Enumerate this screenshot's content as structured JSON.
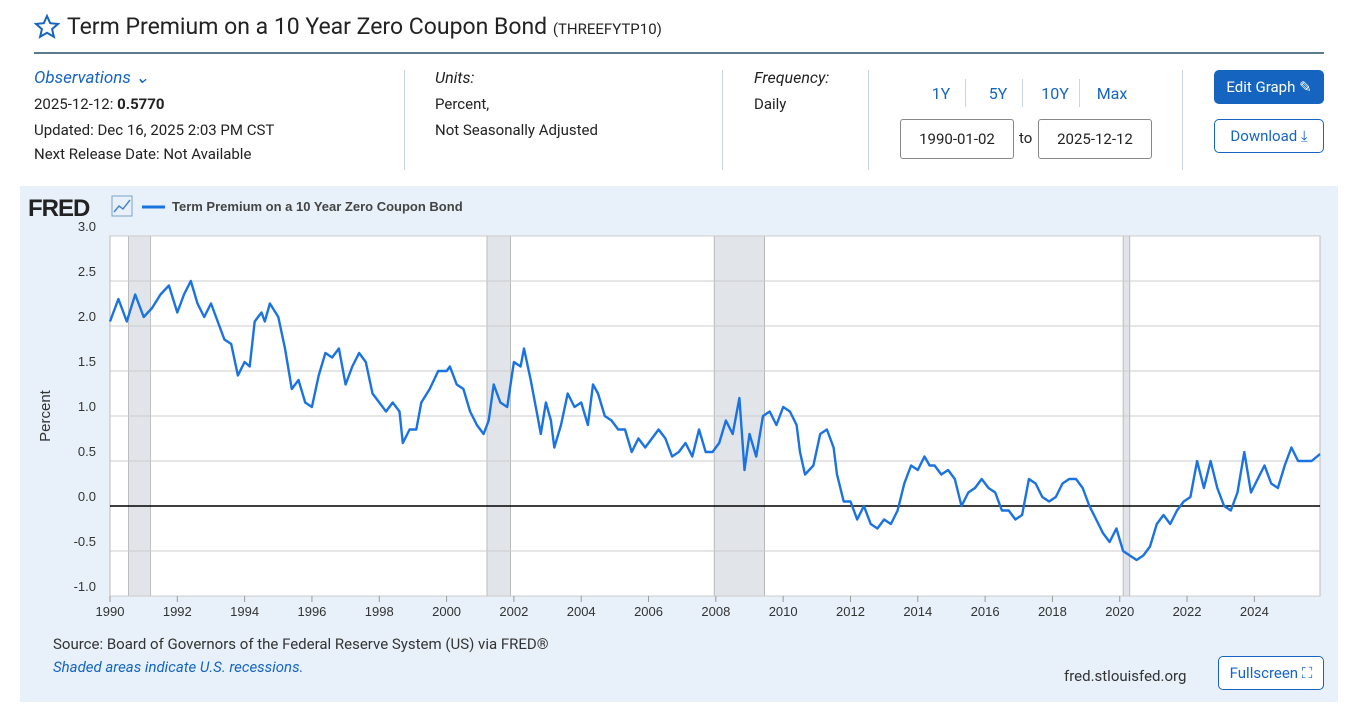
{
  "header": {
    "title": "Term Premium on a 10 Year Zero Coupon Bond",
    "series_id": "(THREEFYTP10)"
  },
  "meta": {
    "observations_label": "Observations",
    "obs_date": "2025-12-12:",
    "obs_value": "0.5770",
    "updated": "Updated: Dec 16, 2025 2:03 PM CST",
    "next_release": "Next Release Date: Not Available",
    "units_label": "Units:",
    "units_1": "Percent,",
    "units_2": "Not Seasonally Adjusted",
    "frequency_label": "Frequency:",
    "frequency": "Daily"
  },
  "controls": {
    "ranges": [
      "1Y",
      "5Y",
      "10Y",
      "Max"
    ],
    "start": "1990-01-02",
    "to": "to",
    "end": "2025-12-12",
    "edit": "Edit Graph",
    "download": "Download"
  },
  "footer": {
    "source": "Source: Board of Governors of the Federal Reserve System (US) via FRED®",
    "shaded": "Shaded areas indicate U.S. recessions.",
    "site": "fred.stlouisfed.org",
    "fullscreen": "Fullscreen"
  },
  "chart_data": {
    "type": "line",
    "logo": "FRED",
    "y_label": "Percent",
    "color": "#1a73e0",
    "zero_line": true,
    "grid": true,
    "series": [
      {
        "name": "Term Premium on a 10 Year Zero Coupon Bond",
        "color": "#1a73e0",
        "x": [
          1990.0,
          1990.25,
          1990.5,
          1990.75,
          1991.0,
          1991.25,
          1991.5,
          1991.75,
          1992.0,
          1992.2,
          1992.4,
          1992.6,
          1992.8,
          1993.0,
          1993.2,
          1993.4,
          1993.6,
          1993.8,
          1994.0,
          1994.15,
          1994.3,
          1994.5,
          1994.6,
          1994.75,
          1995.0,
          1995.2,
          1995.4,
          1995.6,
          1995.8,
          1996.0,
          1996.2,
          1996.4,
          1996.6,
          1996.8,
          1997.0,
          1997.2,
          1997.4,
          1997.6,
          1997.8,
          1998.0,
          1998.2,
          1998.4,
          1998.6,
          1998.7,
          1998.9,
          1999.1,
          1999.25,
          1999.5,
          1999.75,
          2000.0,
          2000.1,
          2000.3,
          2000.5,
          2000.7,
          2000.9,
          2001.1,
          2001.25,
          2001.4,
          2001.6,
          2001.8,
          2002.0,
          2002.2,
          2002.3,
          2002.5,
          2002.7,
          2002.8,
          2002.95,
          2003.1,
          2003.2,
          2003.4,
          2003.6,
          2003.8,
          2004.0,
          2004.2,
          2004.35,
          2004.5,
          2004.7,
          2004.9,
          2005.1,
          2005.3,
          2005.5,
          2005.7,
          2005.9,
          2006.1,
          2006.3,
          2006.5,
          2006.7,
          2006.9,
          2007.1,
          2007.3,
          2007.5,
          2007.7,
          2007.9,
          2008.1,
          2008.3,
          2008.5,
          2008.7,
          2008.85,
          2009.0,
          2009.2,
          2009.4,
          2009.6,
          2009.8,
          2010.0,
          2010.2,
          2010.4,
          2010.5,
          2010.65,
          2010.9,
          2011.1,
          2011.3,
          2011.5,
          2011.6,
          2011.8,
          2012.0,
          2012.2,
          2012.4,
          2012.6,
          2012.8,
          2013.0,
          2013.2,
          2013.4,
          2013.6,
          2013.8,
          2014.0,
          2014.2,
          2014.35,
          2014.5,
          2014.7,
          2014.9,
          2015.1,
          2015.3,
          2015.5,
          2015.7,
          2015.9,
          2016.1,
          2016.3,
          2016.5,
          2016.7,
          2016.9,
          2017.1,
          2017.3,
          2017.5,
          2017.7,
          2017.9,
          2018.1,
          2018.3,
          2018.5,
          2018.7,
          2018.9,
          2019.1,
          2019.3,
          2019.5,
          2019.7,
          2019.9,
          2020.1,
          2020.3,
          2020.5,
          2020.7,
          2020.9,
          2021.1,
          2021.3,
          2021.5,
          2021.7,
          2021.9,
          2022.1,
          2022.3,
          2022.5,
          2022.7,
          2022.9,
          2023.1,
          2023.3,
          2023.5,
          2023.7,
          2023.9,
          2024.1,
          2024.3,
          2024.5,
          2024.7,
          2024.9,
          2025.1,
          2025.3,
          2025.5,
          2025.7,
          2025.95
        ],
        "values": [
          2.05,
          2.3,
          2.05,
          2.35,
          2.1,
          2.2,
          2.35,
          2.45,
          2.15,
          2.35,
          2.5,
          2.25,
          2.1,
          2.25,
          2.05,
          1.85,
          1.8,
          1.45,
          1.6,
          1.55,
          2.05,
          2.15,
          2.05,
          2.25,
          2.1,
          1.75,
          1.3,
          1.4,
          1.15,
          1.1,
          1.45,
          1.7,
          1.65,
          1.75,
          1.35,
          1.55,
          1.7,
          1.6,
          1.25,
          1.15,
          1.05,
          1.15,
          1.05,
          0.7,
          0.85,
          0.85,
          1.15,
          1.3,
          1.5,
          1.5,
          1.55,
          1.35,
          1.3,
          1.05,
          0.9,
          0.8,
          0.95,
          1.35,
          1.15,
          1.1,
          1.6,
          1.55,
          1.75,
          1.4,
          1.0,
          0.8,
          1.15,
          0.95,
          0.65,
          0.9,
          1.25,
          1.1,
          1.15,
          0.9,
          1.35,
          1.25,
          1.0,
          0.95,
          0.85,
          0.85,
          0.6,
          0.75,
          0.65,
          0.75,
          0.85,
          0.75,
          0.55,
          0.6,
          0.7,
          0.55,
          0.85,
          0.6,
          0.6,
          0.7,
          0.95,
          0.8,
          1.2,
          0.4,
          0.8,
          0.55,
          1.0,
          1.05,
          0.9,
          1.1,
          1.05,
          0.9,
          0.6,
          0.35,
          0.45,
          0.8,
          0.85,
          0.65,
          0.35,
          0.05,
          0.05,
          -0.15,
          0.0,
          -0.2,
          -0.25,
          -0.15,
          -0.2,
          -0.05,
          0.25,
          0.45,
          0.4,
          0.55,
          0.45,
          0.45,
          0.35,
          0.4,
          0.3,
          0.0,
          0.15,
          0.2,
          0.3,
          0.2,
          0.15,
          -0.05,
          -0.05,
          -0.15,
          -0.1,
          0.3,
          0.25,
          0.1,
          0.05,
          0.1,
          0.25,
          0.3,
          0.3,
          0.2,
          0.0,
          -0.15,
          -0.3,
          -0.4,
          -0.25,
          -0.5,
          -0.55,
          -0.6,
          -0.55,
          -0.45,
          -0.2,
          -0.1,
          -0.2,
          -0.05,
          0.05,
          0.1,
          0.5,
          0.2,
          0.5,
          0.2,
          0.0,
          -0.05,
          0.15,
          0.6,
          0.15,
          0.3,
          0.45,
          0.25,
          0.2,
          0.45,
          0.65,
          0.5,
          0.5,
          0.5,
          0.577
        ]
      }
    ],
    "recessions": [
      [
        1990.55,
        1991.2
      ],
      [
        2001.2,
        2001.9
      ],
      [
        2007.95,
        2009.45
      ],
      [
        2020.1,
        2020.3
      ]
    ],
    "xlim": [
      1990,
      2025.95
    ],
    "xticks": [
      1990,
      1992,
      1994,
      1996,
      1998,
      2000,
      2002,
      2004,
      2006,
      2008,
      2010,
      2012,
      2014,
      2016,
      2018,
      2020,
      2022,
      2024
    ],
    "ylim": [
      -1,
      3
    ],
    "yticks": [
      {
        "value": 3,
        "label": "3.0"
      },
      2.5,
      {
        "value": 2,
        "label": "2.0"
      },
      1.5,
      {
        "value": 1,
        "label": "1.0"
      },
      0.5,
      {
        "value": 0,
        "label": "0.0"
      },
      -0.5,
      {
        "value": -1,
        "label": "-1.0"
      }
    ]
  }
}
